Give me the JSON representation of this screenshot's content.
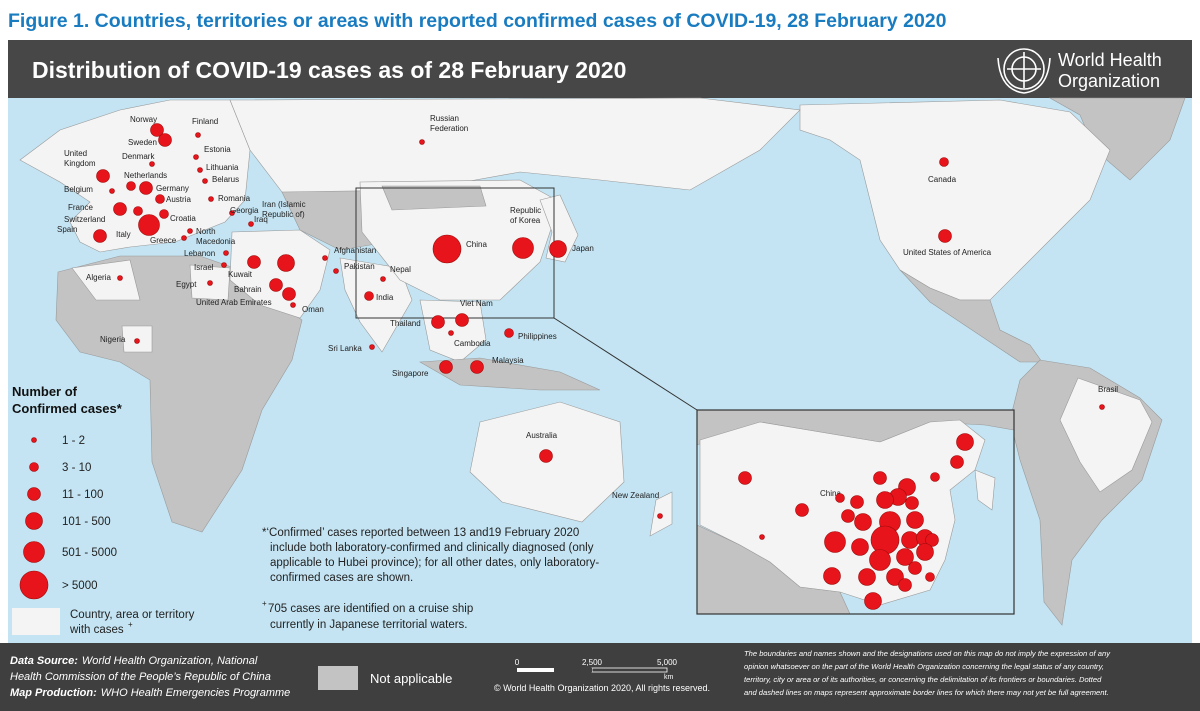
{
  "figure_title": "Figure 1. Countries, territories or areas with reported confirmed cases of COVID-19, 28 February 2020",
  "header": {
    "title": "Distribution of COVID-19 cases as of 28 February 2020",
    "org": [
      "World Health",
      "Organization"
    ]
  },
  "map": {
    "locations": [
      {
        "label": [
          "Norway"
        ],
        "size_class": 3
      },
      {
        "label": [
          "Finland"
        ],
        "size_class": 1
      },
      {
        "label": [
          "Sweden"
        ],
        "size_class": 3
      },
      {
        "label": [
          "Estonia"
        ],
        "size_class": 1
      },
      {
        "label": [
          "United",
          "Kingdom"
        ],
        "size_class": 3
      },
      {
        "label": [
          "Denmark"
        ],
        "size_class": 1
      },
      {
        "label": [
          "Lithuania"
        ],
        "size_class": 1
      },
      {
        "label": [
          "Netherlands"
        ],
        "size_class": 2
      },
      {
        "label": [
          "Belarus"
        ],
        "size_class": 1
      },
      {
        "label": [
          "Belgium"
        ],
        "size_class": 1
      },
      {
        "label": [
          "Germany"
        ],
        "size_class": 3
      },
      {
        "label": [
          "France"
        ],
        "size_class": 3
      },
      {
        "label": [
          "Austria"
        ],
        "size_class": 2
      },
      {
        "label": [
          "Romania"
        ],
        "size_class": 1
      },
      {
        "label": [
          "Switzerland"
        ],
        "size_class": 2
      },
      {
        "label": [
          "Croatia"
        ],
        "size_class": 2
      },
      {
        "label": [
          "Georgia"
        ],
        "size_class": 1
      },
      {
        "label": [
          "Spain"
        ],
        "size_class": 3
      },
      {
        "label": [
          "Italy"
        ],
        "size_class": 5
      },
      {
        "label": [
          "Greece"
        ],
        "size_class": 1
      },
      {
        "label": [
          "North",
          "Macedonia"
        ],
        "size_class": 1
      },
      {
        "label": [
          "Iran (Islamic",
          "Republic of)"
        ],
        "size_class": 4
      },
      {
        "label": [
          "Iraq"
        ],
        "size_class": 1
      },
      {
        "label": [
          "Lebanon"
        ],
        "size_class": 1
      },
      {
        "label": [
          "Israel"
        ],
        "size_class": 1
      },
      {
        "label": [
          "Kuwait"
        ],
        "size_class": 3
      },
      {
        "label": [
          "Bahrain"
        ],
        "size_class": 3
      },
      {
        "label": [
          "Egypt"
        ],
        "size_class": 1
      },
      {
        "label": [
          "United Arab Emirates"
        ],
        "size_class": 3
      },
      {
        "label": [
          "Oman"
        ],
        "size_class": 1
      },
      {
        "label": [
          "Afghanistan"
        ],
        "size_class": 1
      },
      {
        "label": [
          "Pakistan"
        ],
        "size_class": 1
      },
      {
        "label": [
          "Nepal"
        ],
        "size_class": 1
      },
      {
        "label": [
          "India"
        ],
        "size_class": 2
      },
      {
        "label": [
          "Sri Lanka"
        ],
        "size_class": 1
      },
      {
        "label": [
          "Algeria"
        ],
        "size_class": 1
      },
      {
        "label": [
          "Nigeria"
        ],
        "size_class": 1
      },
      {
        "label": [
          "Russian",
          "Federation"
        ],
        "size_class": 1
      },
      {
        "label": [
          "China"
        ],
        "size_class": 6
      },
      {
        "label": [
          "Republic",
          "of Korea"
        ],
        "size_class": 5
      },
      {
        "label": [
          "Japan"
        ],
        "size_class": 4
      },
      {
        "label": [
          "Viet Nam"
        ],
        "size_class": 3
      },
      {
        "label": [
          "Thailand"
        ],
        "size_class": 3
      },
      {
        "label": [
          "Cambodia"
        ],
        "size_class": 1
      },
      {
        "label": [
          "Philippines"
        ],
        "size_class": 2
      },
      {
        "label": [
          "Malaysia"
        ],
        "size_class": 3
      },
      {
        "label": [
          "Singapore"
        ],
        "size_class": 3
      },
      {
        "label": [
          "Australia"
        ],
        "size_class": 3
      },
      {
        "label": [
          "New Zealand"
        ],
        "size_class": 1
      },
      {
        "label": [
          "Canada"
        ],
        "size_class": 2
      },
      {
        "label": [
          "United States of America"
        ],
        "size_class": 3
      },
      {
        "label": [
          "Brasil"
        ],
        "size_class": 1
      }
    ],
    "inset": {
      "label": "China",
      "size_classes": [
        4,
        3,
        2,
        3,
        4,
        4,
        4,
        3,
        3,
        3,
        3,
        3,
        4,
        5,
        4,
        6,
        4,
        4,
        3,
        5,
        4,
        5,
        4,
        4,
        3,
        4,
        4,
        4,
        3,
        2,
        4,
        1,
        2
      ]
    }
  },
  "legend": {
    "title": [
      "Number of",
      "Confirmed cases*"
    ],
    "classes": [
      "1 - 2",
      "3 - 10",
      "11 - 100",
      "101 - 500",
      "501 - 5000",
      "> 5000"
    ],
    "area": [
      "Country, area or territory",
      "with cases"
    ],
    "area_sup": "+"
  },
  "notes": {
    "confirmed": [
      "*‘Confirmed’ cases reported between 13 and19 February 2020",
      "include both laboratory-confirmed and clinically diagnosed (only",
      "applicable to Hubei province); for all other dates, only laboratory-",
      "confirmed cases are shown."
    ],
    "cruise_sup": "+",
    "cruise": [
      "705 cases are identified on a cruise ship",
      "currently in Japanese territorial waters."
    ]
  },
  "footer": {
    "data_source_label": "Data Source:",
    "data_source": [
      "World Health Organization, National",
      "Health Commission of the People’s Republic of China"
    ],
    "production_label": "Map Production:",
    "production": "WHO Health Emergencies Programme",
    "not_applicable": "Not applicable",
    "scale": [
      "0",
      "2,500",
      "5,000",
      "km"
    ],
    "copyright": "© World Health Organization 2020, All rights reserved.",
    "disclaimer": [
      "The boundaries and names shown and the designations used on this map do not imply the expression of any",
      "opinion whatsoever on the part of the World Health Organization concerning the legal status of any country,",
      "territory, city or area or of its authorities, or concerning the delimitation of its frontiers or boundaries. Dotted",
      "and dashed lines on maps represent approximate border lines for which there may not yet be full agreement."
    ]
  }
}
